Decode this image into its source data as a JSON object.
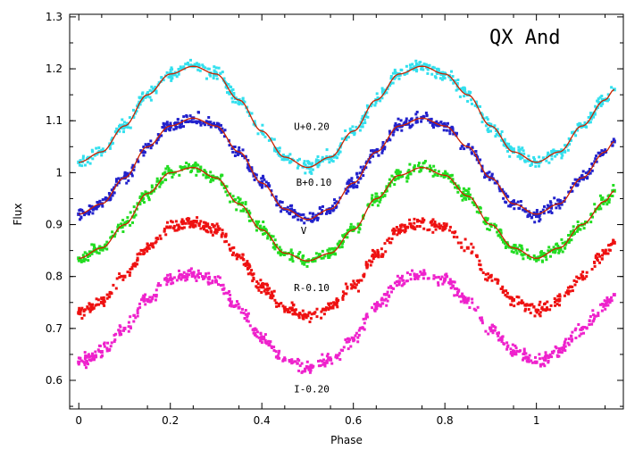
{
  "chart_data": {
    "type": "scatter",
    "title": "QX And",
    "xlabel": "Phase",
    "ylabel": "Flux",
    "xlim": [
      -0.02,
      1.19
    ],
    "ylim": [
      0.545,
      1.305
    ],
    "x_ticks": [
      0,
      0.2,
      0.4,
      0.6,
      0.8,
      1
    ],
    "x_tick_labels": [
      "0",
      "0.2",
      "0.4",
      "0.6",
      "0.8",
      "1"
    ],
    "y_ticks": [
      0.6,
      0.7,
      0.8,
      0.9,
      1.0,
      1.1,
      1.2,
      1.3
    ],
    "y_tick_labels": [
      "0.6",
      "0.7",
      "0.8",
      "0.9",
      "1",
      "1.1",
      "1.2",
      "1.3"
    ],
    "grid": false,
    "fit_color": "#cc2200",
    "series": [
      {
        "name": "U+0.20",
        "color": "#33e0ee",
        "label_x": 0.47,
        "label_y": 1.082,
        "x": [
          0,
          0.05,
          0.1,
          0.15,
          0.2,
          0.25,
          0.3,
          0.35,
          0.4,
          0.45,
          0.5,
          0.55,
          0.6,
          0.65,
          0.7,
          0.75,
          0.8,
          0.85,
          0.9,
          0.95,
          1,
          1.05,
          1.1,
          1.15,
          1.17
        ],
        "y": [
          1.02,
          1.04,
          1.09,
          1.15,
          1.19,
          1.205,
          1.19,
          1.14,
          1.08,
          1.03,
          1.01,
          1.03,
          1.08,
          1.14,
          1.19,
          1.205,
          1.19,
          1.15,
          1.09,
          1.04,
          1.02,
          1.04,
          1.09,
          1.14,
          1.16
        ],
        "fit": true
      },
      {
        "name": "B+0.10",
        "color": "#2222cc",
        "label_x": 0.475,
        "label_y": 0.975,
        "x": [
          0,
          0.05,
          0.1,
          0.15,
          0.2,
          0.25,
          0.3,
          0.35,
          0.4,
          0.45,
          0.5,
          0.55,
          0.6,
          0.65,
          0.7,
          0.75,
          0.8,
          0.85,
          0.9,
          0.95,
          1,
          1.05,
          1.1,
          1.15,
          1.17
        ],
        "y": [
          0.92,
          0.94,
          0.99,
          1.05,
          1.09,
          1.105,
          1.09,
          1.04,
          0.98,
          0.93,
          0.91,
          0.93,
          0.98,
          1.04,
          1.09,
          1.105,
          1.09,
          1.05,
          0.99,
          0.94,
          0.92,
          0.94,
          0.99,
          1.04,
          1.06
        ],
        "fit": true
      },
      {
        "name": "V",
        "color": "#22dd22",
        "label_x": 0.485,
        "label_y": 0.882,
        "x": [
          0,
          0.05,
          0.1,
          0.15,
          0.2,
          0.25,
          0.3,
          0.35,
          0.4,
          0.45,
          0.5,
          0.55,
          0.6,
          0.65,
          0.7,
          0.75,
          0.8,
          0.85,
          0.9,
          0.95,
          1,
          1.05,
          1.1,
          1.15,
          1.17
        ],
        "y": [
          0.835,
          0.855,
          0.9,
          0.96,
          1.0,
          1.01,
          0.99,
          0.94,
          0.89,
          0.845,
          0.83,
          0.845,
          0.89,
          0.95,
          0.995,
          1.01,
          0.995,
          0.955,
          0.9,
          0.855,
          0.835,
          0.855,
          0.9,
          0.945,
          0.965
        ],
        "fit": true
      },
      {
        "name": "R-0.10",
        "color": "#ee1111",
        "label_x": 0.47,
        "label_y": 0.772,
        "x": [
          0,
          0.05,
          0.1,
          0.15,
          0.2,
          0.25,
          0.3,
          0.35,
          0.4,
          0.45,
          0.5,
          0.55,
          0.6,
          0.65,
          0.7,
          0.75,
          0.8,
          0.85,
          0.9,
          0.95,
          1,
          1.05,
          1.1,
          1.15,
          1.17
        ],
        "y": [
          0.73,
          0.75,
          0.8,
          0.855,
          0.895,
          0.905,
          0.89,
          0.84,
          0.78,
          0.74,
          0.725,
          0.74,
          0.78,
          0.84,
          0.89,
          0.905,
          0.895,
          0.855,
          0.8,
          0.755,
          0.735,
          0.755,
          0.8,
          0.845,
          0.865
        ],
        "fit": false
      },
      {
        "name": "I-0.20",
        "color": "#ee22cc",
        "label_x": 0.47,
        "label_y": 0.577,
        "x": [
          0,
          0.05,
          0.1,
          0.15,
          0.2,
          0.25,
          0.3,
          0.35,
          0.4,
          0.45,
          0.5,
          0.55,
          0.6,
          0.65,
          0.7,
          0.75,
          0.8,
          0.85,
          0.9,
          0.95,
          1,
          1.05,
          1.1,
          1.15,
          1.17
        ],
        "y": [
          0.635,
          0.655,
          0.7,
          0.755,
          0.795,
          0.805,
          0.79,
          0.74,
          0.68,
          0.64,
          0.625,
          0.64,
          0.68,
          0.74,
          0.79,
          0.805,
          0.795,
          0.755,
          0.7,
          0.655,
          0.635,
          0.655,
          0.7,
          0.745,
          0.765
        ],
        "fit": false
      }
    ]
  }
}
